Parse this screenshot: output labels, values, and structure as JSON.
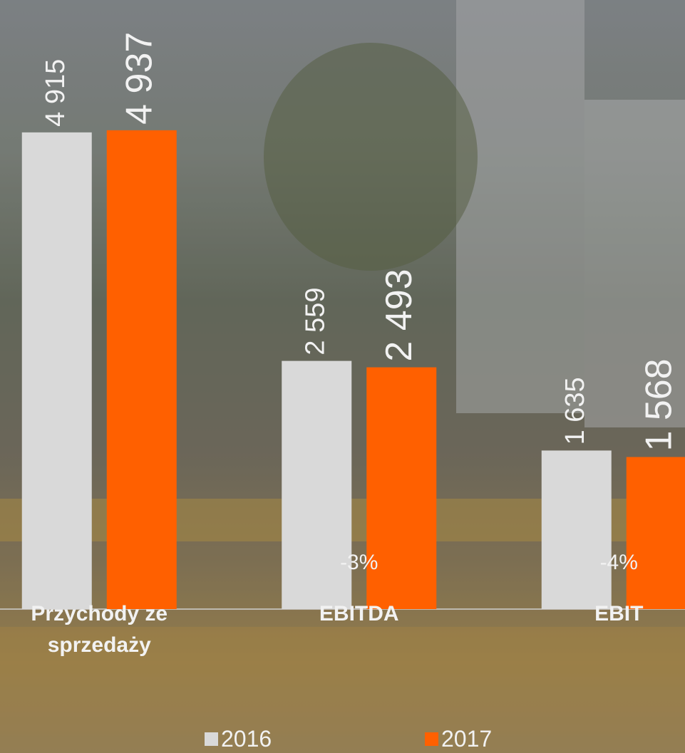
{
  "chart_data": {
    "type": "bar",
    "categories": [
      "Przychody ze sprzedaży",
      "EBITDA",
      "EBIT"
    ],
    "changes": [
      null,
      "-3%",
      "-4%"
    ],
    "series": [
      {
        "name": "2016",
        "color": "#d9d9d9",
        "values": [
          4915,
          2559,
          1635
        ],
        "value_labels": [
          "4 915",
          "2 559",
          "1 635"
        ]
      },
      {
        "name": "2017",
        "color": "#ff6000",
        "values": [
          4937,
          2493,
          1568
        ],
        "value_labels": [
          "4 937",
          "2 493",
          "1 568"
        ]
      }
    ],
    "ylim": [
      0,
      6280
    ]
  }
}
